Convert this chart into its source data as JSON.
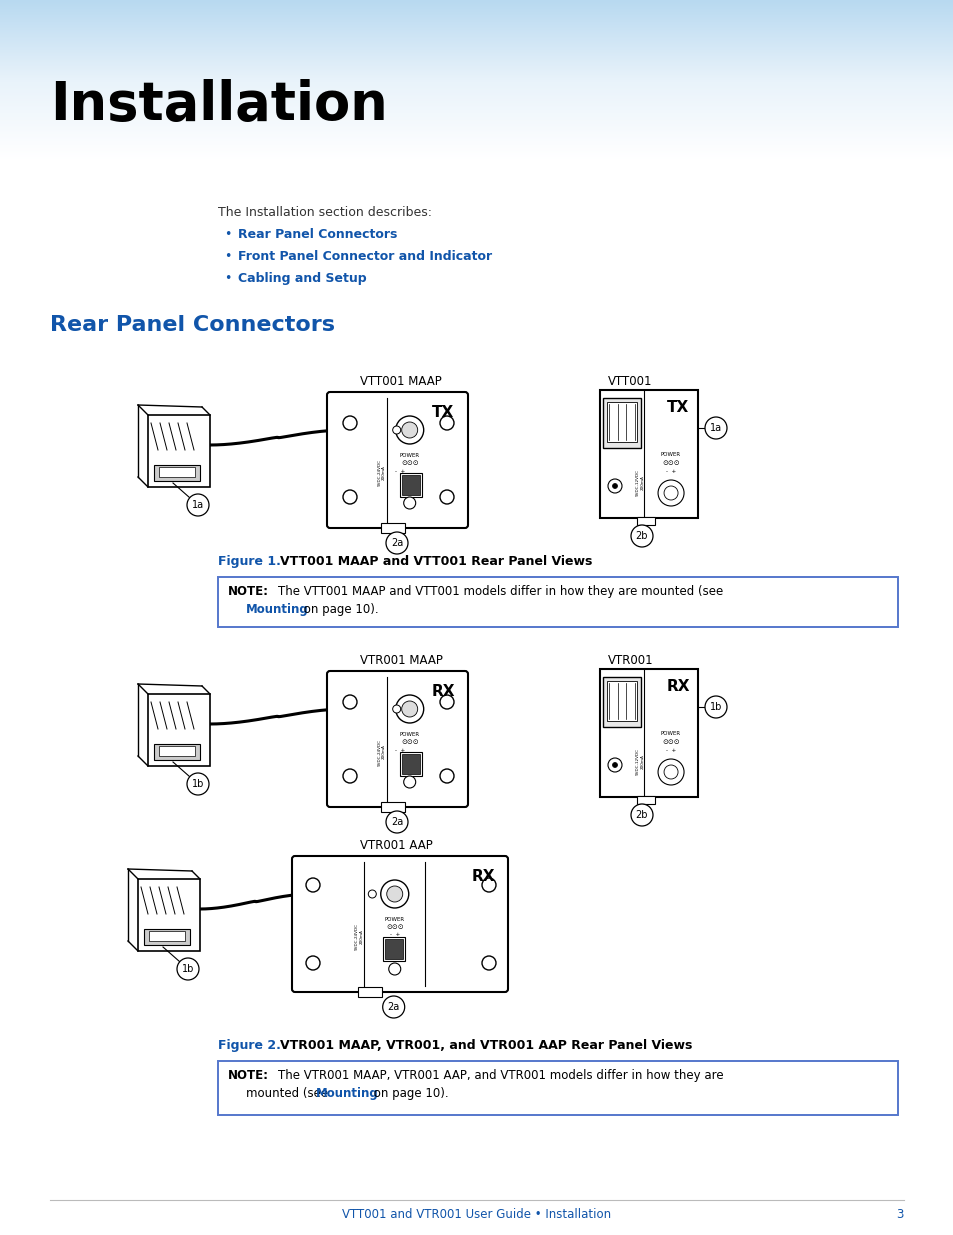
{
  "title": "Installation",
  "blue_color": "#1155aa",
  "dark_blue": "#003399",
  "black_color": "#000000",
  "gray_light": "#f5f5f5",
  "note_bg": "#f0f4ff",
  "note_border": "#5577cc",
  "intro_text": "The Installation section describes:",
  "bullet_items": [
    "Rear Panel Connectors",
    "Front Panel Connector and Indicator",
    "Cabling and Setup"
  ],
  "section_title": "Rear Panel Connectors",
  "fig1_num": "Figure 1.",
  "fig1_text": "VTT001 MAAP and VTT001 Rear Panel Views",
  "note1_bold": "NOTE:",
  "note1_body": "The VTT001 MAAP and VTT001 models differ in how they are mounted (see",
  "note1_link": "Mounting",
  "note1_rest": " on page 10).",
  "fig2_num": "Figure 2.",
  "fig2_text": "VTR001 MAAP, VTR001, and VTR001 AAP Rear Panel Views",
  "note2_bold": "NOTE:",
  "note2_body": "The VTR001 MAAP, VTR001 AAP, and VTR001 models differ in how they are",
  "note2_line2": "mounted (see ",
  "note2_link": "Mounting",
  "note2_rest": " on page 10).",
  "footer_text": "VTT001 and VTR001 User Guide • Installation",
  "footer_page": "3",
  "label_vtt001_maap": "VTT001 MAAP",
  "label_vtt001": "VTT001",
  "label_vtr001_maap": "VTR001 MAAP",
  "label_vtr001": "VTR001",
  "label_vtr001_aap": "VTR001 AAP"
}
